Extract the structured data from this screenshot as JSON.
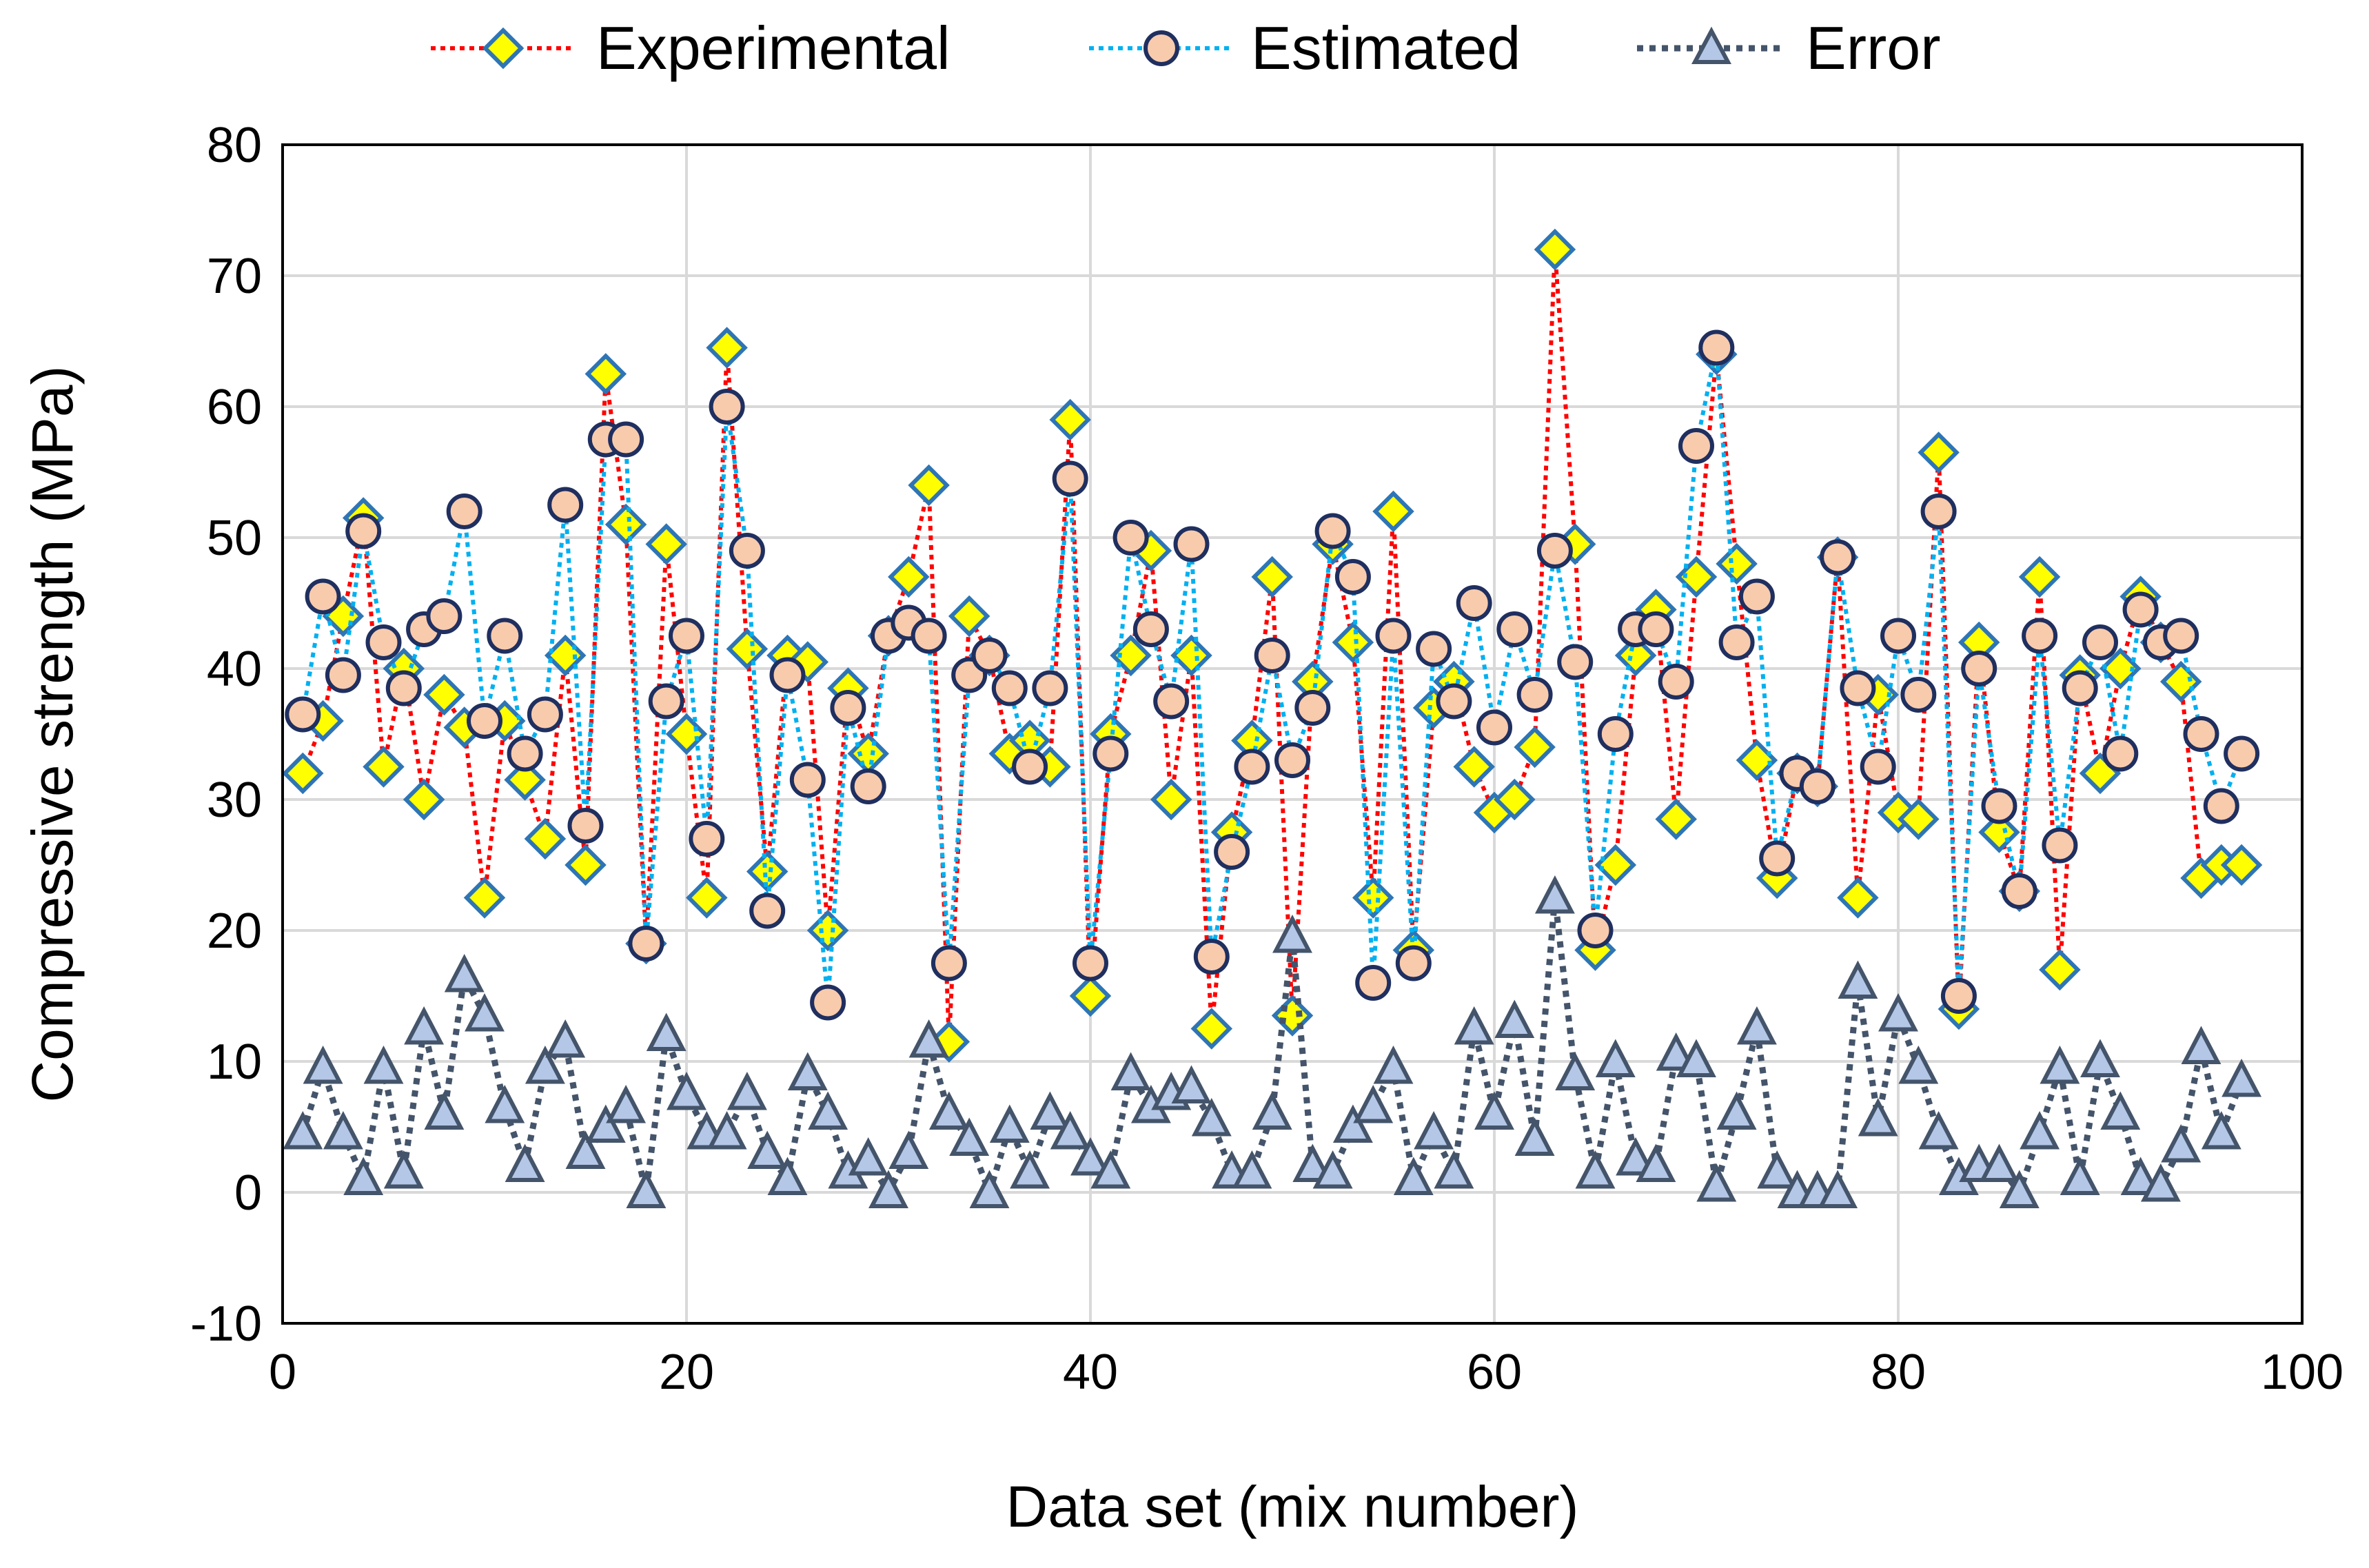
{
  "chart_data": {
    "type": "line",
    "xlabel": "Data set (mix number)",
    "ylabel": "Compressive strength (MPa)",
    "xlim": [
      0,
      100
    ],
    "ylim": [
      -10,
      80
    ],
    "x_ticks": [
      0,
      20,
      40,
      60,
      80,
      100
    ],
    "y_ticks": [
      -10,
      0,
      10,
      20,
      30,
      40,
      50,
      60,
      70,
      80
    ],
    "grid": true,
    "legend_position": "top",
    "series": [
      {
        "name": "Experimental",
        "line_color": "#ff0000",
        "marker": "diamond",
        "marker_fill": "#ffff00",
        "marker_edge": "#2e75b6",
        "values": [
          32,
          36,
          44,
          51.5,
          32.5,
          40,
          30,
          38,
          35.5,
          22.5,
          36,
          31.5,
          27,
          41,
          25,
          62.5,
          51,
          19,
          49.5,
          35,
          22.5,
          64.5,
          41.5,
          24.5,
          41,
          40.5,
          20,
          38.5,
          33.5,
          42.5,
          47,
          54,
          11.5,
          44,
          41,
          33.5,
          34.5,
          32.5,
          59,
          15,
          35,
          41,
          49,
          30,
          41,
          12.5,
          27.5,
          34.5,
          47,
          13.5,
          39,
          49.5,
          42,
          22.5,
          52,
          18.5,
          37,
          39,
          32.5,
          29,
          30,
          34,
          72,
          49.5,
          18.5,
          25,
          41,
          44.5,
          28.5,
          47,
          64,
          48,
          33,
          24,
          32,
          31,
          48.5,
          22.5,
          38,
          29,
          28.5,
          56.5,
          14,
          42,
          27.5,
          23,
          47,
          17,
          39.5,
          32,
          40,
          45.5,
          42,
          39,
          24,
          25,
          25
        ]
      },
      {
        "name": "Estimated",
        "line_color": "#00b0f0",
        "marker": "circle",
        "marker_fill": "#f8cbad",
        "marker_edge": "#1f2f5f",
        "values": [
          36.5,
          45.5,
          39.5,
          50.5,
          42,
          38.5,
          43,
          44,
          52,
          36,
          42.5,
          33.5,
          36.5,
          52.5,
          28,
          57.5,
          57.5,
          19,
          37.5,
          42.5,
          27,
          60,
          49,
          21.5,
          39.5,
          31.5,
          14.5,
          37,
          31,
          42.5,
          43.5,
          42.5,
          17.5,
          39.5,
          41,
          38.5,
          32.5,
          38.5,
          54.5,
          17.5,
          33.5,
          50,
          43,
          37.5,
          49.5,
          18,
          26,
          32.5,
          41,
          33,
          37,
          50.5,
          47,
          16,
          42.5,
          17.5,
          41.5,
          37.5,
          45,
          35.5,
          43,
          38,
          49,
          40.5,
          20,
          35,
          43,
          43,
          39,
          57,
          64.5,
          42,
          45.5,
          25.5,
          32,
          31,
          48.5,
          38.5,
          32.5,
          42.5,
          38,
          52,
          15,
          40,
          29.5,
          23,
          42.5,
          26.5,
          38.5,
          42,
          33.5,
          44.5,
          42,
          42.5,
          35,
          29.5,
          33.5
        ]
      },
      {
        "name": "Error",
        "line_color": "#44546a",
        "marker": "triangle",
        "marker_fill": "#b4c7e7",
        "marker_edge": "#44546a",
        "values": [
          4.5,
          9.5,
          4.5,
          1,
          9.5,
          1.5,
          12.5,
          6,
          16.5,
          13.5,
          6.5,
          2,
          9.5,
          11.5,
          3,
          5,
          6.5,
          0,
          12,
          7.5,
          4.5,
          4.5,
          7.5,
          3,
          1,
          9,
          6,
          1.5,
          2.5,
          0,
          3,
          11.5,
          6,
          4,
          0,
          5,
          1.5,
          6,
          4.5,
          2.5,
          1.5,
          9,
          6.5,
          7.5,
          8,
          5.5,
          1.5,
          1.5,
          6,
          19.5,
          2,
          1.5,
          5,
          6.5,
          9.5,
          1,
          4.5,
          1.5,
          12.5,
          6,
          13,
          4,
          22.5,
          9,
          1.5,
          10,
          2.5,
          2,
          10.5,
          10,
          0.5,
          6,
          12.5,
          1.5,
          0,
          0,
          0,
          16,
          5.5,
          13.5,
          9.5,
          4.5,
          1,
          2,
          2,
          0,
          4.5,
          9.5,
          1,
          10,
          6,
          1,
          0.5,
          3.5,
          11,
          4.5,
          8.5
        ]
      }
    ]
  }
}
